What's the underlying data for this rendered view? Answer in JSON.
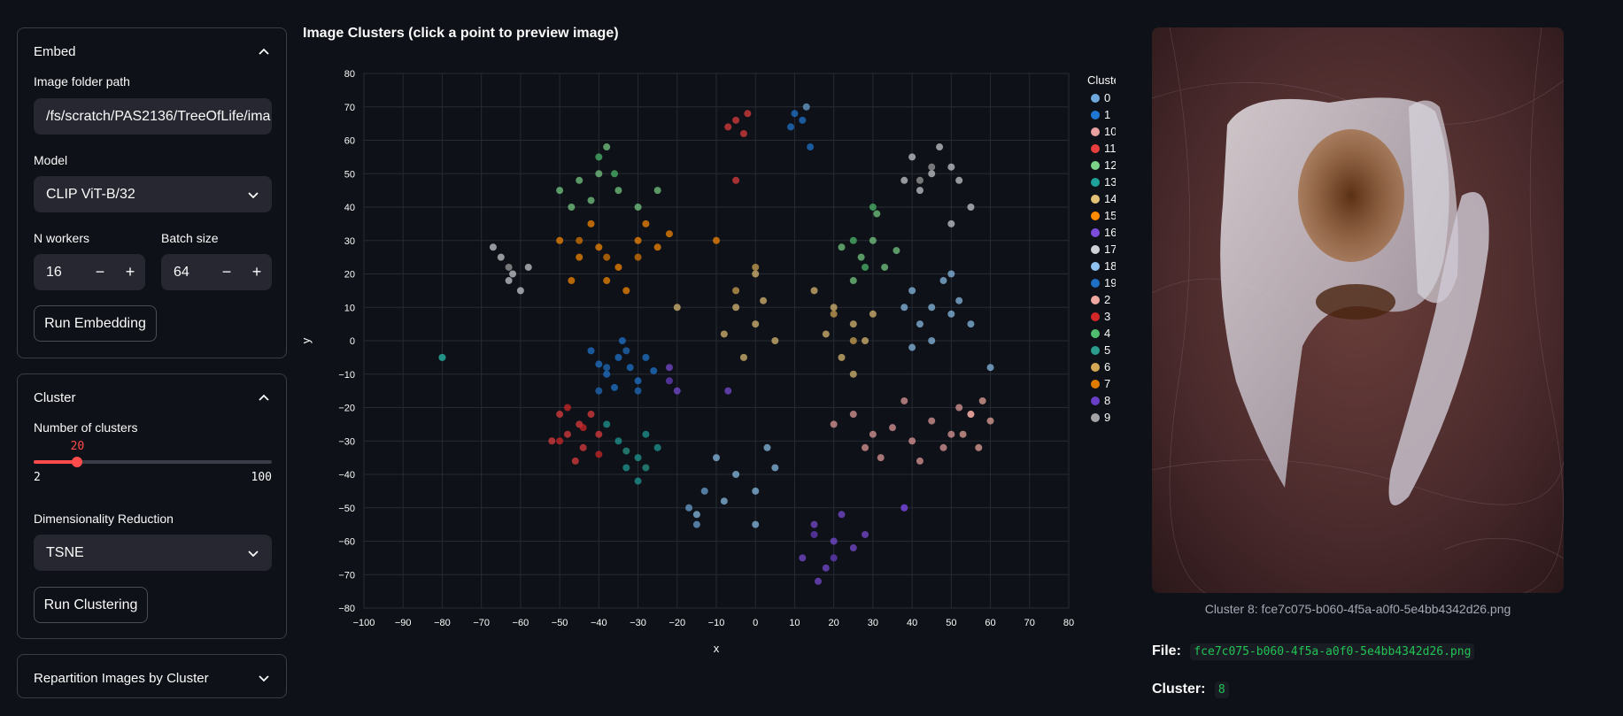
{
  "embed": {
    "title": "Embed",
    "folder_label": "Image folder path",
    "folder_value": "/fs/scratch/PAS2136/TreeOfLife/ima",
    "model_label": "Model",
    "model_value": "CLIP ViT-B/32",
    "workers_label": "N workers",
    "workers_value": "16",
    "batch_label": "Batch size",
    "batch_value": "64",
    "minus": "−",
    "plus": "+",
    "run_label": "Run Embedding"
  },
  "cluster": {
    "title": "Cluster",
    "n_label": "Number of clusters",
    "n_value": "20",
    "n_min": "2",
    "n_max": "100",
    "n_fraction": 0.1837,
    "dr_label": "Dimensionality Reduction",
    "dr_value": "TSNE",
    "run_label": "Run Clustering"
  },
  "repartition": {
    "title": "Repartition Images by Cluster"
  },
  "chart_title": "Image Clusters (click a point to preview image)",
  "chart_data": {
    "type": "scatter",
    "xlabel": "x",
    "ylabel": "y",
    "xlim": [
      -100,
      80
    ],
    "ylim": [
      -80,
      80
    ],
    "xticks": [
      -100,
      -90,
      -80,
      -70,
      -60,
      -50,
      -40,
      -30,
      -20,
      -10,
      0,
      10,
      20,
      30,
      40,
      50,
      60,
      70,
      80
    ],
    "yticks": [
      80,
      70,
      60,
      50,
      40,
      30,
      20,
      10,
      0,
      -10,
      -20,
      -30,
      -40,
      -50,
      -60,
      -70,
      -80
    ],
    "grid": true,
    "legend_title": "Cluster",
    "legend_position": "right",
    "series": [
      {
        "name": "0",
        "color": "#6fa8dc",
        "points": [
          [
            13,
            70
          ],
          [
            -17,
            -50
          ],
          [
            -15,
            -55
          ],
          [
            -13,
            -45
          ]
        ]
      },
      {
        "name": "1",
        "color": "#1f77d4",
        "points": [
          [
            10,
            68
          ],
          [
            12,
            66
          ],
          [
            9,
            64
          ],
          [
            14,
            58
          ],
          [
            -35,
            -5
          ],
          [
            -38,
            -10
          ],
          [
            -32,
            -8
          ],
          [
            -40,
            -7
          ],
          [
            -30,
            -12
          ],
          [
            -36,
            -14
          ],
          [
            -28,
            -5
          ],
          [
            -42,
            -3
          ],
          [
            -34,
            0
          ],
          [
            -26,
            -9
          ]
        ]
      },
      {
        "name": "10",
        "color": "#e8a0a0",
        "points": [
          [
            20,
            -25
          ],
          [
            25,
            -22
          ],
          [
            30,
            -28
          ],
          [
            35,
            -26
          ],
          [
            40,
            -30
          ],
          [
            45,
            -24
          ],
          [
            50,
            -28
          ],
          [
            55,
            -22
          ],
          [
            38,
            -18
          ],
          [
            32,
            -35
          ],
          [
            42,
            -36
          ],
          [
            48,
            -32
          ],
          [
            28,
            -32
          ],
          [
            52,
            -20
          ]
        ]
      },
      {
        "name": "11",
        "color": "#e83e3e",
        "points": [
          [
            -5,
            66
          ],
          [
            -2,
            68
          ],
          [
            -7,
            64
          ],
          [
            -3,
            62
          ],
          [
            -5,
            48
          ],
          [
            -45,
            -25
          ],
          [
            -48,
            -28
          ],
          [
            -42,
            -22
          ],
          [
            -50,
            -22
          ],
          [
            -44,
            -32
          ],
          [
            -40,
            -28
          ],
          [
            -46,
            -36
          ],
          [
            -52,
            -30
          ]
        ]
      },
      {
        "name": "12",
        "color": "#7bd389",
        "points": [
          [
            -50,
            45
          ],
          [
            -45,
            48
          ],
          [
            -40,
            50
          ],
          [
            -42,
            42
          ],
          [
            -35,
            45
          ],
          [
            -38,
            58
          ],
          [
            -30,
            40
          ],
          [
            -25,
            45
          ],
          [
            -47,
            40
          ],
          [
            30,
            30
          ],
          [
            27,
            25
          ],
          [
            33,
            22
          ],
          [
            25,
            18
          ],
          [
            31,
            38
          ],
          [
            22,
            28
          ],
          [
            36,
            27
          ]
        ]
      },
      {
        "name": "13",
        "color": "#1fa09a",
        "points": [
          [
            -80,
            -5
          ],
          [
            -30,
            -35
          ],
          [
            -35,
            -30
          ],
          [
            -28,
            -28
          ],
          [
            -33,
            -38
          ],
          [
            -25,
            -32
          ],
          [
            -38,
            -25
          ],
          [
            -30,
            -42
          ]
        ]
      },
      {
        "name": "14",
        "color": "#e3c177",
        "points": [
          [
            0,
            20
          ],
          [
            -5,
            10
          ],
          [
            0,
            5
          ],
          [
            -8,
            2
          ],
          [
            5,
            0
          ],
          [
            -3,
            -5
          ],
          [
            2,
            12
          ],
          [
            20,
            10
          ],
          [
            25,
            5
          ],
          [
            15,
            15
          ],
          [
            28,
            0
          ],
          [
            22,
            -5
          ],
          [
            18,
            2
          ],
          [
            30,
            8
          ],
          [
            25,
            -10
          ],
          [
            -20,
            10
          ]
        ]
      },
      {
        "name": "15",
        "color": "#ff8c00",
        "points": [
          [
            -50,
            30
          ],
          [
            -45,
            25
          ],
          [
            -40,
            28
          ],
          [
            -35,
            22
          ],
          [
            -30,
            30
          ],
          [
            -25,
            28
          ],
          [
            -42,
            35
          ],
          [
            -47,
            18
          ],
          [
            -38,
            18
          ],
          [
            -28,
            35
          ],
          [
            -22,
            32
          ],
          [
            -33,
            15
          ],
          [
            -10,
            30
          ]
        ]
      },
      {
        "name": "16",
        "color": "#7c4ddb",
        "points": [
          [
            15,
            -55
          ],
          [
            20,
            -60
          ],
          [
            18,
            -68
          ],
          [
            25,
            -62
          ],
          [
            12,
            -65
          ],
          [
            22,
            -52
          ],
          [
            28,
            -58
          ],
          [
            16,
            -72
          ],
          [
            -22,
            -8
          ],
          [
            -20,
            -15
          ],
          [
            -7,
            -15
          ],
          [
            38,
            -50
          ]
        ]
      },
      {
        "name": "17",
        "color": "#cfd3d8",
        "points": [
          [
            -65,
            25
          ],
          [
            -62,
            20
          ],
          [
            -60,
            15
          ],
          [
            -63,
            18
          ],
          [
            -67,
            28
          ],
          [
            -58,
            22
          ],
          [
            40,
            55
          ],
          [
            45,
            50
          ],
          [
            50,
            52
          ],
          [
            42,
            45
          ],
          [
            47,
            58
          ],
          [
            52,
            48
          ],
          [
            38,
            48
          ],
          [
            55,
            40
          ],
          [
            50,
            35
          ]
        ]
      },
      {
        "name": "18",
        "color": "#8fc3f0",
        "points": [
          [
            40,
            15
          ],
          [
            45,
            10
          ],
          [
            50,
            8
          ],
          [
            42,
            5
          ],
          [
            48,
            18
          ],
          [
            38,
            10
          ],
          [
            52,
            12
          ],
          [
            45,
            0
          ],
          [
            40,
            -2
          ],
          [
            50,
            20
          ],
          [
            55,
            5
          ],
          [
            -10,
            -35
          ],
          [
            -5,
            -40
          ],
          [
            0,
            -45
          ],
          [
            5,
            -38
          ],
          [
            0,
            -55
          ],
          [
            -8,
            -48
          ],
          [
            3,
            -32
          ],
          [
            60,
            -8
          ],
          [
            -15,
            -52
          ]
        ]
      },
      {
        "name": "19",
        "color": "#1f6fc4",
        "points": [
          [
            -38,
            -8
          ],
          [
            -33,
            -3
          ],
          [
            -30,
            -15
          ],
          [
            -40,
            -15
          ]
        ]
      },
      {
        "name": "2",
        "color": "#f0a9a0",
        "points": [
          [
            55,
            -22
          ],
          [
            58,
            -18
          ],
          [
            60,
            -24
          ],
          [
            53,
            -28
          ],
          [
            57,
            -32
          ]
        ]
      },
      {
        "name": "3",
        "color": "#d62728",
        "points": [
          [
            -48,
            -20
          ],
          [
            -44,
            -26
          ],
          [
            -50,
            -30
          ],
          [
            -40,
            -34
          ]
        ]
      },
      {
        "name": "4",
        "color": "#4fbf6f",
        "points": [
          [
            -40,
            55
          ],
          [
            -36,
            50
          ],
          [
            30,
            40
          ],
          [
            25,
            30
          ],
          [
            28,
            22
          ]
        ]
      },
      {
        "name": "5",
        "color": "#2a9d8f",
        "points": [
          [
            -80,
            -5
          ],
          [
            -33,
            -33
          ],
          [
            -28,
            -38
          ]
        ]
      },
      {
        "name": "6",
        "color": "#d4a855",
        "points": [
          [
            0,
            22
          ],
          [
            -5,
            15
          ],
          [
            20,
            8
          ],
          [
            25,
            0
          ]
        ]
      },
      {
        "name": "7",
        "color": "#e07b00",
        "points": [
          [
            -45,
            30
          ],
          [
            -38,
            25
          ],
          [
            -30,
            25
          ]
        ]
      },
      {
        "name": "8",
        "color": "#6a3fc8",
        "points": [
          [
            15,
            -58
          ],
          [
            20,
            -65
          ],
          [
            -22,
            -12
          ],
          [
            38,
            -50
          ]
        ]
      },
      {
        "name": "9",
        "color": "#a3a3a3",
        "points": [
          [
            -63,
            22
          ],
          [
            45,
            52
          ],
          [
            42,
            48
          ]
        ]
      }
    ]
  },
  "preview": {
    "caption": "Cluster 8: fce7c075-b060-4f5a-a0f0-5e4bb4342d26.png",
    "file_label": "File:",
    "file_value": "fce7c075-b060-4f5a-a0f0-5e4bb4342d26.png",
    "cluster_label": "Cluster:",
    "cluster_value": "8"
  }
}
